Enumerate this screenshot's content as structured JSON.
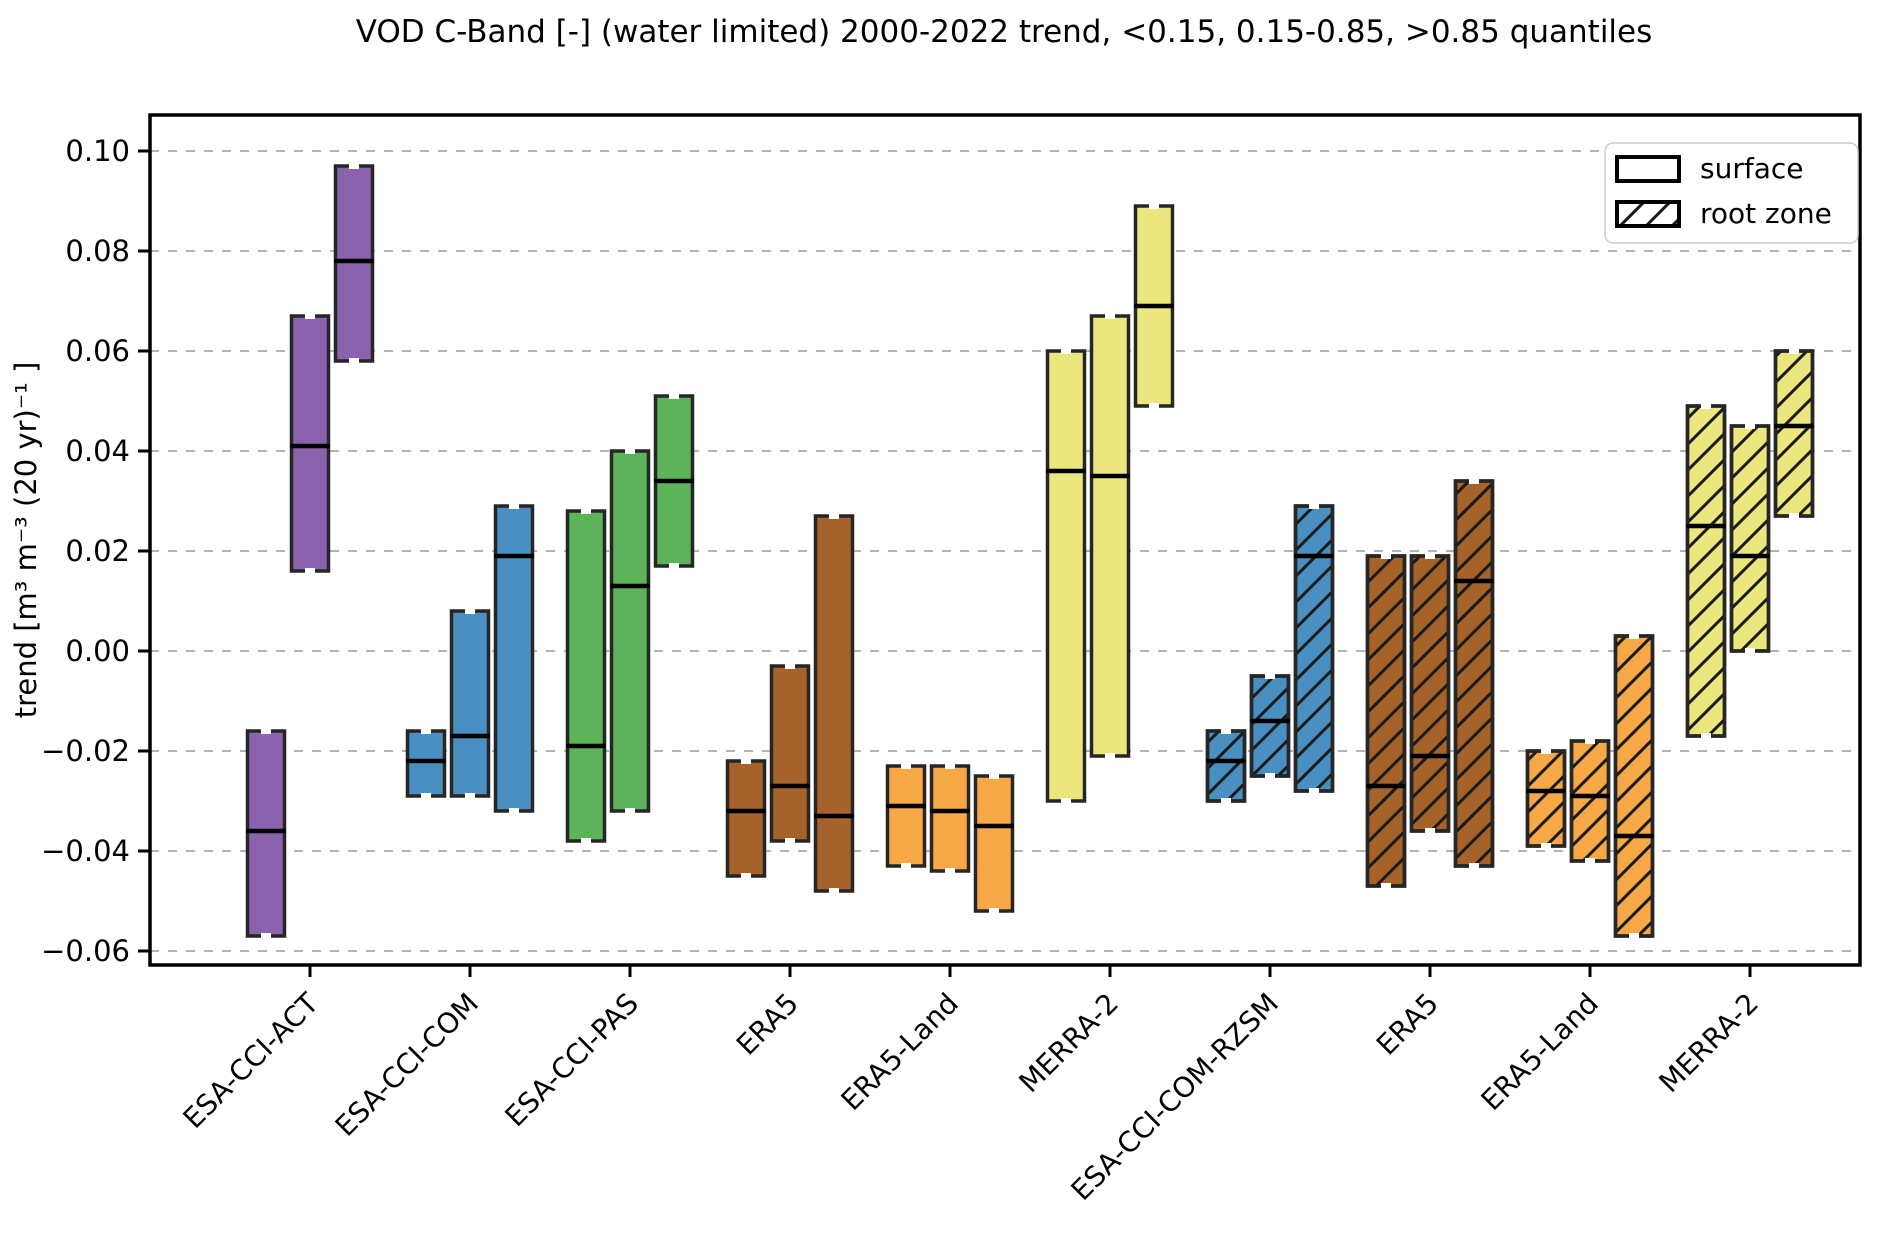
{
  "chart_data": {
    "type": "boxplot",
    "title": "VOD C-Band [-] (water limited) 2000-2022 trend, <0.15, 0.15-0.85, >0.85 quantiles",
    "ylabel": "trend [m³ m⁻³ (20 yr)⁻¹ ]",
    "ylim": [
      -0.0628,
      0.1072
    ],
    "yticks": [
      0.1,
      0.08,
      0.06,
      0.04,
      0.02,
      0.0,
      -0.02,
      -0.04,
      -0.06
    ],
    "grid": "horizontal-dashed",
    "legend_position": "upper-right",
    "legend": [
      {
        "label": "surface",
        "hatch": false
      },
      {
        "label": "root zone",
        "hatch": true
      }
    ],
    "box_semantics": "each group shows three boxes for pixels in <0.15, 0.15-0.85, >0.85 quantile classes; box = [lower, median, upper] trend in m3 m-3 (20 yr)-1",
    "groups": [
      {
        "label": "ESA-CCI-ACT",
        "color": "#8b62ae",
        "hatch": false,
        "boxes": [
          [
            -0.057,
            -0.036,
            -0.016
          ],
          [
            0.016,
            0.041,
            0.067
          ],
          [
            0.058,
            0.078,
            0.097
          ]
        ]
      },
      {
        "label": "ESA-CCI-COM",
        "color": "#4a8fc2",
        "hatch": false,
        "boxes": [
          [
            -0.029,
            -0.022,
            -0.016
          ],
          [
            -0.029,
            -0.017,
            0.008
          ],
          [
            -0.032,
            0.019,
            0.029
          ]
        ]
      },
      {
        "label": "ESA-CCI-PAS",
        "color": "#5cb35a",
        "hatch": false,
        "boxes": [
          [
            -0.038,
            -0.019,
            0.028
          ],
          [
            -0.032,
            0.013,
            0.04
          ],
          [
            0.017,
            0.034,
            0.051
          ]
        ]
      },
      {
        "label": "ERA5",
        "color": "#a5632a",
        "hatch": false,
        "boxes": [
          [
            -0.045,
            -0.032,
            -0.022
          ],
          [
            -0.038,
            -0.027,
            -0.003
          ],
          [
            -0.048,
            -0.033,
            0.027
          ]
        ]
      },
      {
        "label": "ERA5-Land",
        "color": "#f6a846",
        "hatch": false,
        "boxes": [
          [
            -0.043,
            -0.031,
            -0.023
          ],
          [
            -0.044,
            -0.032,
            -0.023
          ],
          [
            -0.052,
            -0.035,
            -0.025
          ]
        ]
      },
      {
        "label": "MERRA-2",
        "color": "#ebe67e",
        "hatch": false,
        "boxes": [
          [
            -0.03,
            0.036,
            0.06
          ],
          [
            -0.021,
            0.035,
            0.067
          ],
          [
            0.049,
            0.069,
            0.089
          ]
        ]
      },
      {
        "label": "ESA-CCI-COM-RZSM",
        "color": "#4a8fc2",
        "hatch": true,
        "boxes": [
          [
            -0.03,
            -0.022,
            -0.016
          ],
          [
            -0.025,
            -0.014,
            -0.005
          ],
          [
            -0.028,
            0.019,
            0.029
          ]
        ]
      },
      {
        "label": "ERA5",
        "color": "#a5632a",
        "hatch": true,
        "boxes": [
          [
            -0.047,
            -0.027,
            0.019
          ],
          [
            -0.036,
            -0.021,
            0.019
          ],
          [
            -0.043,
            0.014,
            0.034
          ]
        ]
      },
      {
        "label": "ERA5-Land",
        "color": "#f6a846",
        "hatch": true,
        "boxes": [
          [
            -0.039,
            -0.028,
            -0.02
          ],
          [
            -0.042,
            -0.029,
            -0.018
          ],
          [
            -0.057,
            -0.037,
            0.003
          ]
        ]
      },
      {
        "label": "MERRA-2",
        "color": "#ebe67e",
        "hatch": true,
        "boxes": [
          [
            -0.017,
            0.025,
            0.049
          ],
          [
            0.0,
            0.019,
            0.045
          ],
          [
            0.027,
            0.045,
            0.06
          ]
        ]
      }
    ],
    "colors": {
      "edge": "#262626",
      "median": "#000000",
      "grid": "#b3b3b3",
      "frame": "#000000",
      "background": "#ffffff",
      "legend_border": "#cccccc"
    }
  }
}
